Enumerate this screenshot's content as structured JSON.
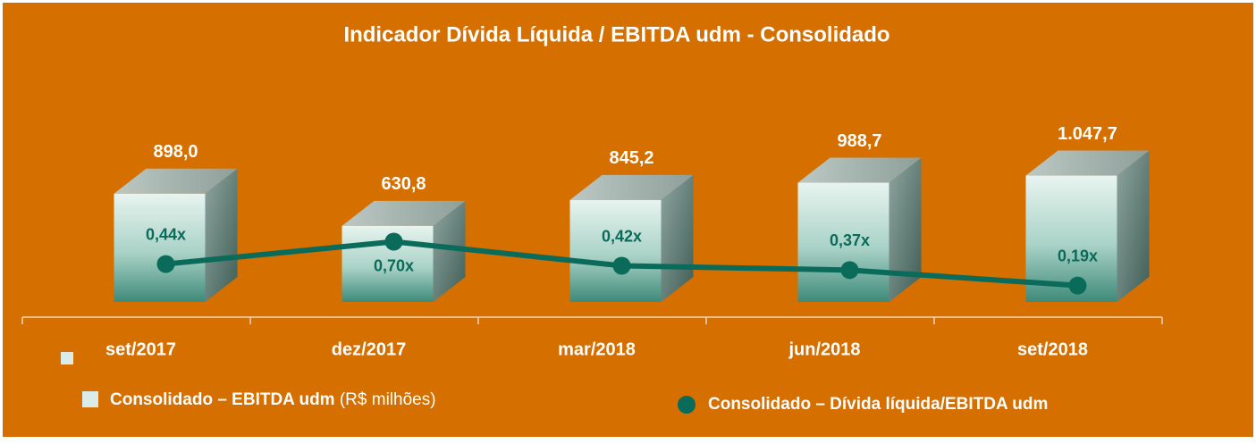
{
  "chart_data": {
    "type": "bar_line",
    "title": "Indicador Dívida Líquida / EBITDA udm - Consolidado",
    "categories": [
      "set/2017",
      "dez/2017",
      "mar/2018",
      "jun/2018",
      "set/2018"
    ],
    "series": [
      {
        "name": "Consolidado – EBITDA udm",
        "note": "(R$ milhões)",
        "type": "bar",
        "color": "#4f9a88",
        "values": [
          898.0,
          630.8,
          845.2,
          988.7,
          1047.7
        ],
        "value_labels": [
          "898,0",
          "630,8",
          "845,2",
          "988,7",
          "1.047,7"
        ]
      },
      {
        "name": "Consolidado – Dívida líquida/EBITDA udm",
        "type": "line",
        "axis": "y2",
        "color": "#0b6b5a",
        "values": [
          0.44,
          0.7,
          0.42,
          0.37,
          0.19
        ],
        "value_labels": [
          "0,44x",
          "0,70x",
          "0,42x",
          "0,37x",
          "0,19x"
        ]
      }
    ],
    "ylim": [
      0,
      2000
    ],
    "y2lim": [
      0,
      2.8
    ]
  }
}
